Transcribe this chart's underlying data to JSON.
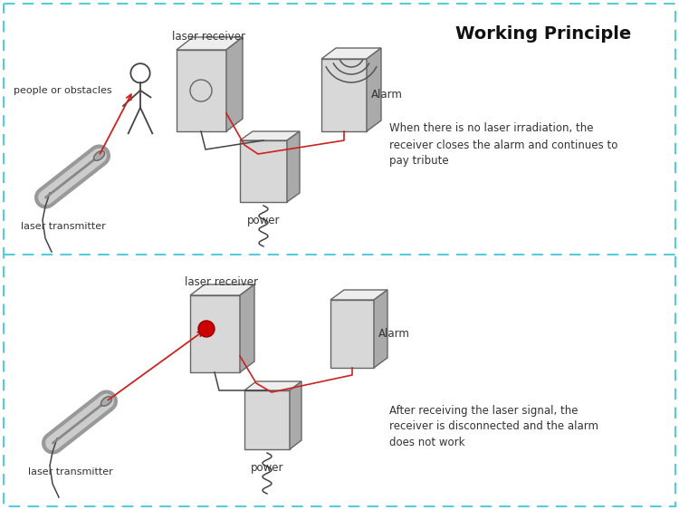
{
  "bg_color": "#ffffff",
  "border_color": "#55ccdd",
  "title": "Working Principle",
  "panel1": {
    "label_receiver": "laser receiver",
    "label_transmitter": "laser transmitter",
    "label_power": "power",
    "label_alarm": "Alarm",
    "label_person": "people or obstacles",
    "description": "When there is no laser irradiation, the\nreceiver closes the alarm and continues to\npay tribute"
  },
  "panel2": {
    "label_receiver": "laser receiver",
    "label_transmitter": "laser transmitter",
    "label_power": "power",
    "label_alarm": "Alarm",
    "description": "After receiving the laser signal, the\nreceiver is disconnected and the alarm\ndoes not work"
  },
  "colors": {
    "laser_line": "#cc2222",
    "device_face": "#d8d8d8",
    "device_edge": "#666666",
    "device_top": "#eeeeee",
    "device_side": "#aaaaaa",
    "wire": "#444444",
    "person": "#444444",
    "text": "#333333",
    "title_text": "#111111",
    "dot_red": "#cc0000",
    "sound_wave": "#555555",
    "transmitter_outer": "#888888",
    "transmitter_inner": "#bbbbbb"
  }
}
